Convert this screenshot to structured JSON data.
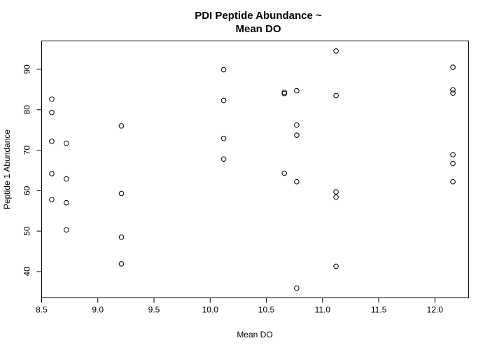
{
  "chart_data": {
    "type": "scatter",
    "title": [
      "PDI Peptide Abundance ~",
      "Mean DO"
    ],
    "xlabel": "Mean DO",
    "ylabel": "Peptide 1 Abundance",
    "xlim": [
      8.5,
      12.3
    ],
    "ylim": [
      33.5,
      97
    ],
    "x_ticks": [
      8.5,
      9.0,
      9.5,
      10.0,
      10.5,
      11.0,
      11.5,
      12.0
    ],
    "x_tick_labels": [
      "8.5",
      "9.0",
      "9.5",
      "10.0",
      "10.5",
      "11.0",
      "11.5",
      "12.0"
    ],
    "y_ticks": [
      40,
      50,
      60,
      70,
      80,
      90
    ],
    "y_tick_labels": [
      "40",
      "50",
      "60",
      "70",
      "80",
      "90"
    ],
    "grid": false,
    "legend": "none",
    "marker": "open-circle",
    "points": [
      {
        "x": 8.59,
        "y": 82.6
      },
      {
        "x": 8.59,
        "y": 79.3
      },
      {
        "x": 8.59,
        "y": 72.2
      },
      {
        "x": 8.59,
        "y": 64.2
      },
      {
        "x": 8.59,
        "y": 57.8
      },
      {
        "x": 8.72,
        "y": 71.7
      },
      {
        "x": 8.72,
        "y": 62.9
      },
      {
        "x": 8.72,
        "y": 57.0
      },
      {
        "x": 8.72,
        "y": 50.3
      },
      {
        "x": 9.21,
        "y": 76.0
      },
      {
        "x": 9.21,
        "y": 59.3
      },
      {
        "x": 9.21,
        "y": 48.5
      },
      {
        "x": 9.21,
        "y": 41.9
      },
      {
        "x": 10.12,
        "y": 89.9
      },
      {
        "x": 10.12,
        "y": 82.3
      },
      {
        "x": 10.12,
        "y": 72.9
      },
      {
        "x": 10.12,
        "y": 67.8
      },
      {
        "x": 10.66,
        "y": 84.3
      },
      {
        "x": 10.66,
        "y": 84.0
      },
      {
        "x": 10.66,
        "y": 64.3
      },
      {
        "x": 10.77,
        "y": 84.7
      },
      {
        "x": 10.77,
        "y": 76.2
      },
      {
        "x": 10.77,
        "y": 73.7
      },
      {
        "x": 10.77,
        "y": 62.2
      },
      {
        "x": 10.77,
        "y": 35.9
      },
      {
        "x": 11.12,
        "y": 94.5
      },
      {
        "x": 11.12,
        "y": 83.5
      },
      {
        "x": 11.12,
        "y": 59.7
      },
      {
        "x": 11.12,
        "y": 58.4
      },
      {
        "x": 11.12,
        "y": 41.3
      },
      {
        "x": 12.16,
        "y": 90.5
      },
      {
        "x": 12.16,
        "y": 84.9
      },
      {
        "x": 12.16,
        "y": 84.1
      },
      {
        "x": 12.16,
        "y": 68.9
      },
      {
        "x": 12.16,
        "y": 66.7
      },
      {
        "x": 12.16,
        "y": 62.2
      }
    ]
  }
}
